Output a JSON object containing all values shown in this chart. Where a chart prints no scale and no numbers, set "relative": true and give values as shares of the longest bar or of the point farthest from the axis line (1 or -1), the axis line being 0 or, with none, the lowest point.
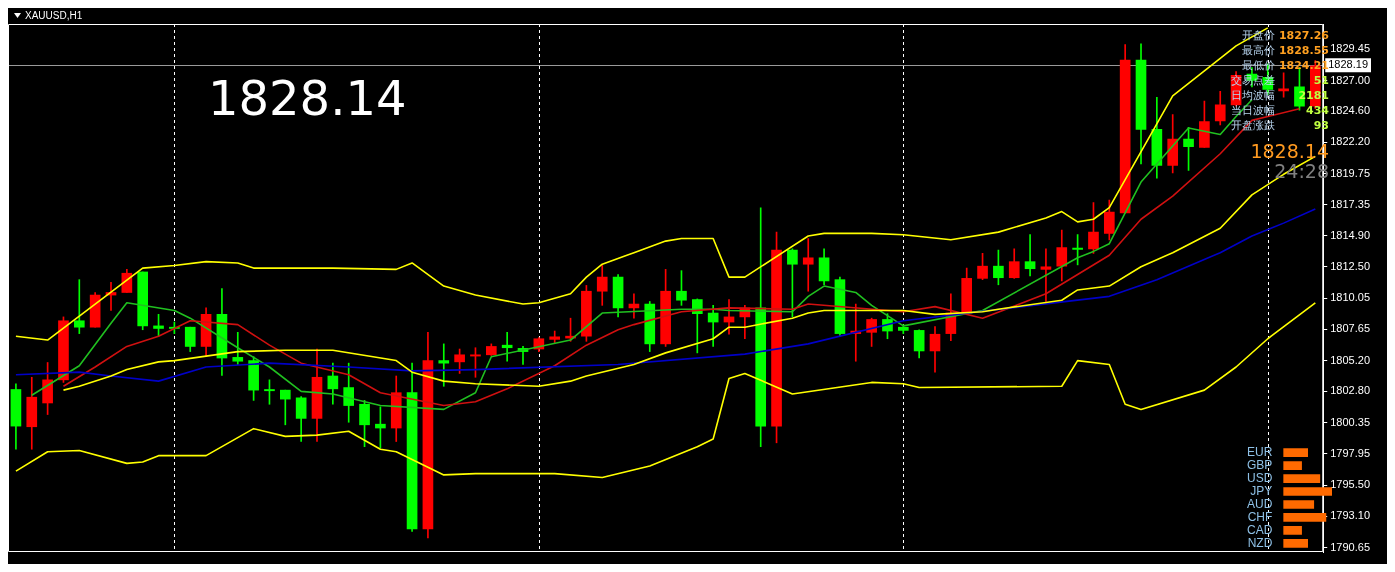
{
  "chart_data": [
    {
      "type": "candlestick",
      "title": "XAUUSD,H1",
      "categories": [
        null,
        null,
        null,
        null,
        null,
        null,
        null,
        null,
        null,
        null,
        null,
        null,
        null,
        null,
        null,
        null,
        null,
        null,
        null,
        null,
        null,
        null,
        null,
        null,
        null,
        null,
        null,
        null,
        null,
        null,
        null,
        null,
        null,
        null,
        null,
        null,
        null,
        null,
        null,
        null,
        null,
        null,
        null,
        null,
        null,
        null,
        null,
        null,
        null,
        null,
        null,
        null,
        null,
        null,
        null,
        null,
        null,
        null,
        null,
        null,
        null,
        null,
        null,
        null,
        null,
        null,
        null,
        null,
        null,
        null,
        null,
        null,
        null,
        null,
        null,
        null,
        null,
        null,
        null,
        null,
        null,
        null,
        null
      ],
      "ohlc": [
        [
          1802.95,
          1803.4,
          1798.3,
          1800.1
        ],
        [
          1800.05,
          1803.9,
          1798.3,
          1802.35
        ],
        [
          1801.9,
          1805.05,
          1801.0,
          1803.7
        ],
        [
          1803.7,
          1808.6,
          1803.5,
          1808.3
        ],
        [
          1808.3,
          1811.5,
          1807.3,
          1807.8
        ],
        [
          1807.8,
          1810.5,
          1807.8,
          1810.3
        ],
        [
          1810.3,
          1811.3,
          1809.1,
          1810.5
        ],
        [
          1810.5,
          1812.3,
          1810.5,
          1812.0
        ],
        [
          1812.1,
          1812.1,
          1807.6,
          1807.9
        ],
        [
          1807.9,
          1808.8,
          1807.1,
          1807.7
        ],
        [
          1807.8,
          1808.2,
          1807.3,
          1807.7
        ],
        [
          1807.8,
          1807.8,
          1805.9,
          1806.3
        ],
        [
          1806.3,
          1809.3,
          1805.5,
          1808.8
        ],
        [
          1808.8,
          1810.8,
          1804.05,
          1805.4
        ],
        [
          1805.45,
          1807.4,
          1804.9,
          1805.15
        ],
        [
          1805.2,
          1805.5,
          1802.1,
          1802.9
        ],
        [
          1802.95,
          1803.7,
          1801.8,
          1802.85
        ],
        [
          1802.9,
          1802.9,
          1800.2,
          1802.2
        ],
        [
          1802.3,
          1802.4,
          1798.9,
          1800.7
        ],
        [
          1800.7,
          1806.1,
          1798.9,
          1803.9
        ],
        [
          1804.0,
          1805.0,
          1801.8,
          1803.0
        ],
        [
          1803.1,
          1805.0,
          1800.4,
          1801.7
        ],
        [
          1801.8,
          1802.1,
          1798.5,
          1800.2
        ],
        [
          1800.25,
          1801.6,
          1798.4,
          1799.95
        ],
        [
          1799.95,
          1804.0,
          1798.9,
          1802.7
        ],
        [
          1802.7,
          1805.0,
          1791.9,
          1792.1
        ],
        [
          1792.1,
          1807.4,
          1791.4,
          1805.2
        ],
        [
          1805.2,
          1806.5,
          1803.2,
          1805.0
        ],
        [
          1805.1,
          1806.1,
          1804.2,
          1805.65
        ],
        [
          1805.55,
          1806.2,
          1803.9,
          1805.65
        ],
        [
          1805.65,
          1806.5,
          1805.6,
          1806.3
        ],
        [
          1806.4,
          1807.4,
          1805.15,
          1806.2
        ],
        [
          1806.15,
          1806.3,
          1804.9,
          1805.9
        ],
        [
          1806.1,
          1807.0,
          1805.9,
          1806.9
        ],
        [
          1806.85,
          1807.5,
          1806.6,
          1807.05
        ],
        [
          1806.95,
          1808.5,
          1806.7,
          1807.1
        ],
        [
          1807.1,
          1811.05,
          1806.7,
          1810.6
        ],
        [
          1810.6,
          1812.6,
          1809.5,
          1811.7
        ],
        [
          1811.7,
          1811.9,
          1808.6,
          1809.3
        ],
        [
          1809.3,
          1810.4,
          1808.5,
          1809.6
        ],
        [
          1809.6,
          1809.8,
          1805.9,
          1806.5
        ],
        [
          1806.5,
          1812.3,
          1806.3,
          1810.6
        ],
        [
          1810.6,
          1812.2,
          1809.5,
          1809.9
        ],
        [
          1809.95,
          1810.0,
          1805.8,
          1808.85
        ],
        [
          1808.9,
          1809.5,
          1806.3,
          1808.2
        ],
        [
          1808.2,
          1809.95,
          1807.25,
          1808.6
        ],
        [
          1808.6,
          1809.5,
          1806.9,
          1809.3
        ],
        [
          1809.3,
          1817.1,
          1798.5,
          1800.1
        ],
        [
          1800.1,
          1815.2,
          1798.8,
          1813.8
        ],
        [
          1813.8,
          1813.9,
          1808.6,
          1812.7
        ],
        [
          1812.7,
          1814.7,
          1810.6,
          1813.2
        ],
        [
          1813.2,
          1813.9,
          1811.1,
          1811.4
        ],
        [
          1811.5,
          1811.7,
          1807.1,
          1807.3
        ],
        [
          1807.3,
          1809.6,
          1805.15,
          1807.5
        ],
        [
          1807.4,
          1808.5,
          1806.3,
          1808.4
        ],
        [
          1808.4,
          1808.85,
          1806.9,
          1807.5
        ],
        [
          1807.8,
          1808.0,
          1807.3,
          1807.55
        ],
        [
          1807.55,
          1807.6,
          1805.4,
          1805.95
        ],
        [
          1805.95,
          1807.85,
          1804.3,
          1807.25
        ],
        [
          1807.3,
          1810.4,
          1806.75,
          1808.9
        ],
        [
          1808.9,
          1812.4,
          1808.9,
          1811.6
        ],
        [
          1811.6,
          1813.55,
          1811.5,
          1812.55
        ],
        [
          1812.55,
          1813.8,
          1811.1,
          1811.65
        ],
        [
          1811.65,
          1813.9,
          1811.6,
          1812.9
        ],
        [
          1812.9,
          1815.0,
          1811.8,
          1812.35
        ],
        [
          1812.3,
          1813.9,
          1809.8,
          1812.5
        ],
        [
          1812.55,
          1815.35,
          1811.4,
          1814.0
        ],
        [
          1813.95,
          1815.0,
          1812.65,
          1813.85
        ],
        [
          1813.9,
          1817.5,
          1813.55,
          1815.2
        ],
        [
          1815.1,
          1817.7,
          1814.6,
          1816.75
        ],
        [
          1816.7,
          1829.8,
          1816.7,
          1828.6
        ],
        [
          1828.6,
          1829.85,
          1820.5,
          1823.2
        ],
        [
          1823.2,
          1825.7,
          1819.4,
          1820.4
        ],
        [
          1820.4,
          1824.35,
          1819.8,
          1822.45
        ],
        [
          1822.45,
          1823.35,
          1820.0,
          1821.85
        ],
        [
          1821.8,
          1825.4,
          1821.8,
          1823.8
        ],
        [
          1823.85,
          1826.15,
          1823.55,
          1825.1
        ],
        [
          1825.1,
          1827.7,
          1825.0,
          1827.4
        ],
        [
          1827.5,
          1828.0,
          1826.5,
          1827.0
        ],
        [
          1827.25,
          1828.3,
          1825.9,
          1826.3
        ],
        [
          1826.2,
          1827.6,
          1825.7,
          1826.35
        ],
        [
          1826.5,
          1828.0,
          1824.7,
          1825.0
        ],
        [
          1825.0,
          1828.55,
          1824.8,
          1828.14
        ]
      ],
      "colors": [
        "#00ff00",
        "#ff0000",
        "#ff0000",
        "#ff0000",
        "#00ff00",
        "#ff0000",
        "#ff0000",
        "#ff0000",
        "#00ff00",
        "#00ff00",
        "#00ff00",
        "#00ff00",
        "#ff0000",
        "#00ff00",
        "#00ff00",
        "#00ff00",
        "#00ff00",
        "#00ff00",
        "#00ff00",
        "#ff0000",
        "#00ff00",
        "#00ff00",
        "#00ff00",
        "#00ff00",
        "#ff0000",
        "#00ff00",
        "#ff0000",
        "#00ff00",
        "#ff0000",
        "#ff0000",
        "#ff0000",
        "#00ff00",
        "#00ff00",
        "#ff0000",
        "#ff0000",
        "#ff0000",
        "#ff0000",
        "#ff0000",
        "#00ff00",
        "#ff0000",
        "#00ff00",
        "#ff0000",
        "#00ff00",
        "#00ff00",
        "#00ff00",
        "#ff0000",
        "#ff0000",
        "#00ff00",
        "#ff0000",
        "#00ff00",
        "#ff0000",
        "#00ff00",
        "#00ff00",
        "#ff0000",
        "#ff0000",
        "#00ff00",
        "#00ff00",
        "#00ff00",
        "#ff0000",
        "#ff0000",
        "#ff0000",
        "#ff0000",
        "#00ff00",
        "#ff0000",
        "#00ff00",
        "#ff0000",
        "#ff0000",
        "#00ff00",
        "#ff0000",
        "#ff0000",
        "#ff0000",
        "#00ff00",
        "#00ff00",
        "#ff0000",
        "#00ff00",
        "#ff0000",
        "#ff0000",
        "#ff0000",
        "#00ff00",
        "#00ff00",
        "#ff0000",
        "#00ff00",
        "#ff0000"
      ],
      "series": [
        {
          "type": "line",
          "color": "#ffff00",
          "values": [
            1807.1,
            null,
            1806.8,
            null,
            null,
            null,
            null,
            null,
            1812.4,
            null,
            1812.6,
            null,
            1812.9,
            null,
            1812.8,
            1812.4,
            null,
            null,
            null,
            null,
            1812.4,
            null,
            null,
            null,
            1812.3,
            1812.8,
            null,
            1811.0,
            null,
            1810.3,
            null,
            null,
            1809.6,
            1809.7,
            null,
            1810.4,
            1811.7,
            1812.7,
            null,
            1813.6,
            null,
            1814.5,
            1814.7,
            null,
            1814.7,
            1811.7,
            1811.7,
            null,
            null,
            null,
            1814.9,
            1815.1,
            null,
            null,
            1815.1,
            null,
            1815.0,
            null,
            null,
            1814.6,
            null,
            null,
            1815.2,
            null,
            null,
            1816.3,
            1816.8,
            1816.0,
            1816.2,
            1817.1,
            null,
            null,
            null,
            1825.8,
            null,
            null,
            null,
            1829.7,
            null,
            1831.1,
            null,
            null,
            null
          ]
        },
        {
          "type": "line",
          "color": "#ffff00",
          "values": [
            null,
            null,
            null,
            1802.9,
            1803.2,
            null,
            1804.0,
            1804.5,
            null,
            1805.1,
            1805.2,
            null,
            null,
            null,
            1805.9,
            null,
            null,
            1806.0,
            null,
            null,
            1806.0,
            null,
            null,
            null,
            1805.2,
            1804.3,
            null,
            1803.6,
            null,
            1803.4,
            null,
            null,
            null,
            1803.2,
            null,
            1803.6,
            1804.0,
            null,
            null,
            1804.9,
            null,
            1805.8,
            null,
            null,
            1806.9,
            1807.8,
            1807.8,
            null,
            null,
            1808.5,
            1808.9,
            1809.1,
            null,
            null,
            null,
            null,
            1809.1,
            null,
            1808.8,
            null,
            null,
            1809.0,
            1809.2,
            null,
            null,
            null,
            1809.9,
            1810.7,
            null,
            1811.0,
            null,
            1812.5,
            null,
            1813.6,
            null,
            null,
            1815.5,
            null,
            1818.1,
            null,
            1819.7,
            null,
            1821.1
          ]
        },
        {
          "type": "line",
          "color": "#ffff00",
          "values": [
            1796.6,
            null,
            1798.1,
            null,
            1798.2,
            null,
            null,
            1797.2,
            1797.3,
            1797.8,
            null,
            null,
            1797.8,
            null,
            null,
            1799.9,
            null,
            1799.3,
            null,
            1799.4,
            null,
            1799.7,
            null,
            1798.3,
            1798.1,
            null,
            null,
            1796.3,
            null,
            1796.4,
            null,
            null,
            null,
            null,
            1796.4,
            null,
            null,
            1796.1,
            null,
            null,
            1797.0,
            null,
            null,
            1798.5,
            1799.1,
            1803.8,
            1804.2,
            null,
            null,
            1802.6,
            null,
            null,
            null,
            null,
            1803.5,
            null,
            1803.4,
            1803.1,
            null,
            null,
            null,
            null,
            null,
            null,
            null,
            null,
            1803.2,
            1805.2,
            null,
            1804.9,
            1801.8,
            1801.4,
            null,
            null,
            null,
            1802.9,
            null,
            1804.7,
            null,
            1806.9,
            null,
            null,
            1809.7
          ]
        },
        {
          "type": "line",
          "color": "#0000c8",
          "values": [
            1804.1,
            null,
            null,
            null,
            1804.3,
            null,
            1804.0,
            null,
            null,
            1803.6,
            null,
            null,
            1804.7,
            null,
            null,
            null,
            1805.0,
            null,
            null,
            null,
            null,
            1804.7,
            null,
            null,
            null,
            1804.4,
            null,
            null,
            null,
            1804.5,
            null,
            null,
            null,
            null,
            null,
            null,
            null,
            null,
            1804.9,
            null,
            null,
            null,
            null,
            null,
            null,
            null,
            1805.7,
            null,
            null,
            null,
            1806.5,
            null,
            null,
            null,
            null,
            null,
            1808.3,
            null,
            null,
            null,
            null,
            null,
            null,
            null,
            null,
            null,
            null,
            null,
            null,
            1810.2,
            null,
            null,
            1811.5,
            null,
            null,
            null,
            1813.6,
            null,
            1814.9,
            null,
            1815.9,
            null,
            1817.0
          ]
        },
        {
          "type": "line",
          "color": "#d01010",
          "values": [
            null,
            null,
            null,
            1803.2,
            null,
            1804.7,
            null,
            1806.3,
            null,
            1807.1,
            null,
            1808.3,
            null,
            null,
            1808.0,
            null,
            1806.4,
            null,
            1805.0,
            null,
            null,
            1804.1,
            null,
            1802.7,
            null,
            null,
            null,
            1801.7,
            null,
            1802.0,
            null,
            1803.0,
            null,
            null,
            1804.8,
            null,
            1806.4,
            null,
            1807.6,
            1808.0,
            null,
            null,
            1809.0,
            null,
            null,
            1809.3,
            null,
            null,
            null,
            1809.2,
            1809.6,
            null,
            null,
            null,
            null,
            null,
            1809.0,
            null,
            1809.4,
            null,
            null,
            1808.5,
            null,
            null,
            null,
            1810.4,
            null,
            null,
            null,
            1813.4,
            null,
            1816.2,
            null,
            1818.0,
            null,
            null,
            1821.3,
            null,
            1823.9,
            null,
            null,
            1824.8,
            null
          ]
        },
        {
          "type": "line",
          "color": "#20c020",
          "values": [
            null,
            1802.5,
            null,
            null,
            1804.8,
            null,
            1808.1,
            1809.7,
            null,
            null,
            1809.1,
            1808.5,
            null,
            null,
            1806.2,
            null,
            1804.7,
            null,
            1802.8,
            null,
            1802.6,
            null,
            null,
            1801.7,
            null,
            null,
            null,
            1801.4,
            null,
            1802.7,
            1805.5,
            null,
            null,
            null,
            null,
            1806.8,
            null,
            1808.9,
            null,
            null,
            null,
            null,
            1809.2,
            null,
            1809.2,
            1809.1,
            null,
            null,
            null,
            1809.0,
            1810.2,
            1811.0,
            null,
            1810.5,
            1809.5,
            null,
            1807.9,
            null,
            null,
            null,
            null,
            1809.1,
            null,
            null,
            null,
            null,
            null,
            1813.2,
            1813.7,
            1814.3,
            null,
            1819.1,
            null,
            null,
            1823.3,
            null,
            1822.8,
            1824.2,
            1825.5,
            null,
            null,
            null,
            null
          ]
        }
      ],
      "ylim": [
        1790.3,
        1831.4
      ],
      "grid": "x",
      "yticks": [
        1790.65,
        {
          "value": 1793.1,
          "label": "1793.10"
        },
        {
          "value": 1795.5,
          "label": "1795.50"
        },
        1797.95,
        1800.35,
        {
          "value": 1802.8,
          "label": "1802.80"
        },
        {
          "value": 1805.2,
          "label": "1805.20"
        },
        1807.65,
        1810.05,
        {
          "value": 1812.5,
          "label": "1812.50"
        },
        {
          "value": 1814.9,
          "label": "1814.90"
        },
        1817.35,
        1819.75,
        {
          "value": 1822.2,
          "label": "1822.20"
        },
        {
          "value": 1824.6,
          "label": "1824.60"
        },
        {
          "value": 1827,
          "label": "1827.00"
        },
        1829.45
      ],
      "ref_lines": [
        {
          "axis": "y",
          "value": 1828.19,
          "label": "1828.19",
          "color": "#9a9a9a"
        }
      ],
      "annotations": [
        "1828.14",
        "开盘价",
        "1827.26",
        "最高价",
        "1828.55",
        "最低价",
        "1824.21",
        "交易点差",
        "51",
        "日均波幅",
        "2181",
        "当日波幅",
        "434",
        "开盘涨跌",
        "93",
        "1828.14",
        "24:28"
      ]
    },
    {
      "type": "bar",
      "orientation": "horizontal",
      "relative": true,
      "categories": [
        "EUR",
        "GBP",
        "USD",
        "JPY",
        "AUD",
        "CHF",
        "CAD",
        "NZD"
      ],
      "values": [
        0.5,
        0.375,
        0.75,
        1,
        0.625,
        0.875,
        0.375,
        0.5
      ],
      "color": "#ff6a00"
    }
  ]
}
